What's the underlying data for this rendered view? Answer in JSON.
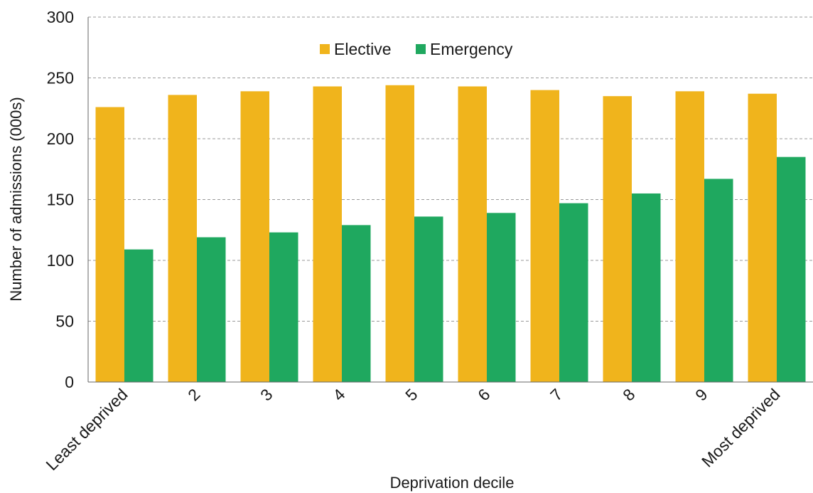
{
  "chart_data": {
    "type": "bar",
    "title": "",
    "xlabel": "Deprivation decile",
    "ylabel": "Number of admissions (000s)",
    "categories": [
      "Least deprived",
      "2",
      "3",
      "4",
      "5",
      "6",
      "7",
      "8",
      "9",
      "Most deprived"
    ],
    "series": [
      {
        "name": "Elective",
        "color": "#F0B41C",
        "values": [
          226,
          236,
          239,
          243,
          244,
          243,
          240,
          235,
          239,
          237
        ]
      },
      {
        "name": "Emergency",
        "color": "#1FA85F",
        "values": [
          109,
          119,
          123,
          129,
          136,
          139,
          147,
          155,
          167,
          185
        ]
      }
    ],
    "ylim": [
      0,
      300
    ],
    "yticks": [
      0,
      50,
      100,
      150,
      200,
      250,
      300
    ],
    "grid": "horizontal dashed",
    "legend_position": "top-center"
  }
}
